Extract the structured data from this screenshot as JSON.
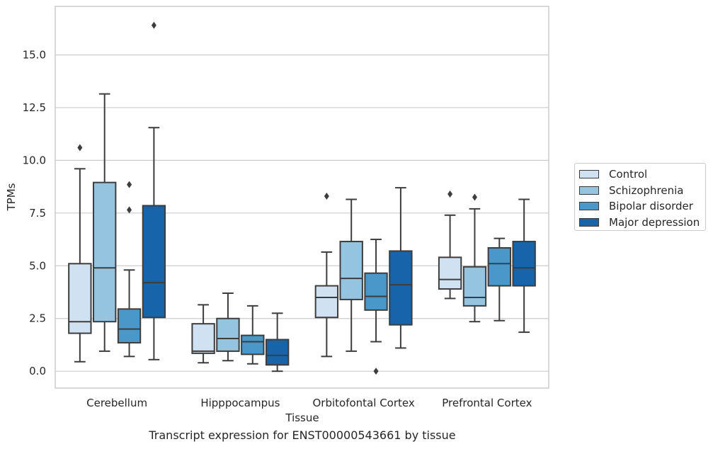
{
  "caption": "Transcript expression for ENST00000543661 by tissue",
  "chart_data": {
    "type": "box",
    "xlabel": "Tissue",
    "ylabel": "TPMs",
    "ylim": [
      -0.8,
      17.3
    ],
    "yticks": [
      "0.0",
      "2.5",
      "5.0",
      "7.5",
      "10.0",
      "12.5",
      "15.0"
    ],
    "grid": true,
    "legend_position": "right",
    "categories": [
      "Cerebellum",
      "Hipppocampus",
      "Orbitofontal Cortex",
      "Prefrontal Cortex"
    ],
    "series": [
      {
        "name": "Control",
        "color": "#d0e1f2",
        "boxes": [
          {
            "whisker_low": 0.45,
            "q1": 1.8,
            "median": 2.35,
            "q3": 5.1,
            "whisker_high": 9.6,
            "outliers": [
              10.6
            ]
          },
          {
            "whisker_low": 0.4,
            "q1": 0.85,
            "median": 0.95,
            "q3": 2.25,
            "whisker_high": 3.15,
            "outliers": []
          },
          {
            "whisker_low": 0.7,
            "q1": 2.55,
            "median": 3.5,
            "q3": 4.05,
            "whisker_high": 5.65,
            "outliers": [
              8.3
            ]
          },
          {
            "whisker_low": 3.45,
            "q1": 3.9,
            "median": 4.35,
            "q3": 5.4,
            "whisker_high": 7.4,
            "outliers": [
              8.4
            ]
          }
        ]
      },
      {
        "name": "Schizophrenia",
        "color": "#94c4df",
        "boxes": [
          {
            "whisker_low": 0.95,
            "q1": 2.35,
            "median": 4.9,
            "q3": 8.95,
            "whisker_high": 13.15,
            "outliers": []
          },
          {
            "whisker_low": 0.5,
            "q1": 0.95,
            "median": 1.55,
            "q3": 2.5,
            "whisker_high": 3.7,
            "outliers": []
          },
          {
            "whisker_low": 0.95,
            "q1": 3.4,
            "median": 4.4,
            "q3": 6.15,
            "whisker_high": 8.15,
            "outliers": []
          },
          {
            "whisker_low": 2.35,
            "q1": 3.1,
            "median": 3.5,
            "q3": 4.95,
            "whisker_high": 7.7,
            "outliers": [
              8.25
            ]
          }
        ]
      },
      {
        "name": "Bipolar disorder",
        "color": "#4a98c9",
        "boxes": [
          {
            "whisker_low": 0.7,
            "q1": 1.35,
            "median": 2.0,
            "q3": 2.95,
            "whisker_high": 4.8,
            "outliers": [
              7.65,
              8.85
            ]
          },
          {
            "whisker_low": 0.35,
            "q1": 0.8,
            "median": 1.4,
            "q3": 1.7,
            "whisker_high": 3.1,
            "outliers": []
          },
          {
            "whisker_low": 1.4,
            "q1": 2.9,
            "median": 3.55,
            "q3": 4.65,
            "whisker_high": 6.25,
            "outliers": [
              0.0
            ]
          },
          {
            "whisker_low": 2.4,
            "q1": 4.05,
            "median": 5.1,
            "q3": 5.85,
            "whisker_high": 6.3,
            "outliers": []
          }
        ]
      },
      {
        "name": "Major depression",
        "color": "#1764ab",
        "boxes": [
          {
            "whisker_low": 0.55,
            "q1": 2.55,
            "median": 4.2,
            "q3": 7.85,
            "whisker_high": 11.55,
            "outliers": [
              16.4
            ]
          },
          {
            "whisker_low": 0.0,
            "q1": 0.3,
            "median": 0.75,
            "q3": 1.5,
            "whisker_high": 2.75,
            "outliers": []
          },
          {
            "whisker_low": 1.1,
            "q1": 2.2,
            "median": 4.1,
            "q3": 5.7,
            "whisker_high": 8.7,
            "outliers": []
          },
          {
            "whisker_low": 1.85,
            "q1": 4.05,
            "median": 4.9,
            "q3": 6.15,
            "whisker_high": 8.15,
            "outliers": []
          }
        ]
      }
    ]
  }
}
